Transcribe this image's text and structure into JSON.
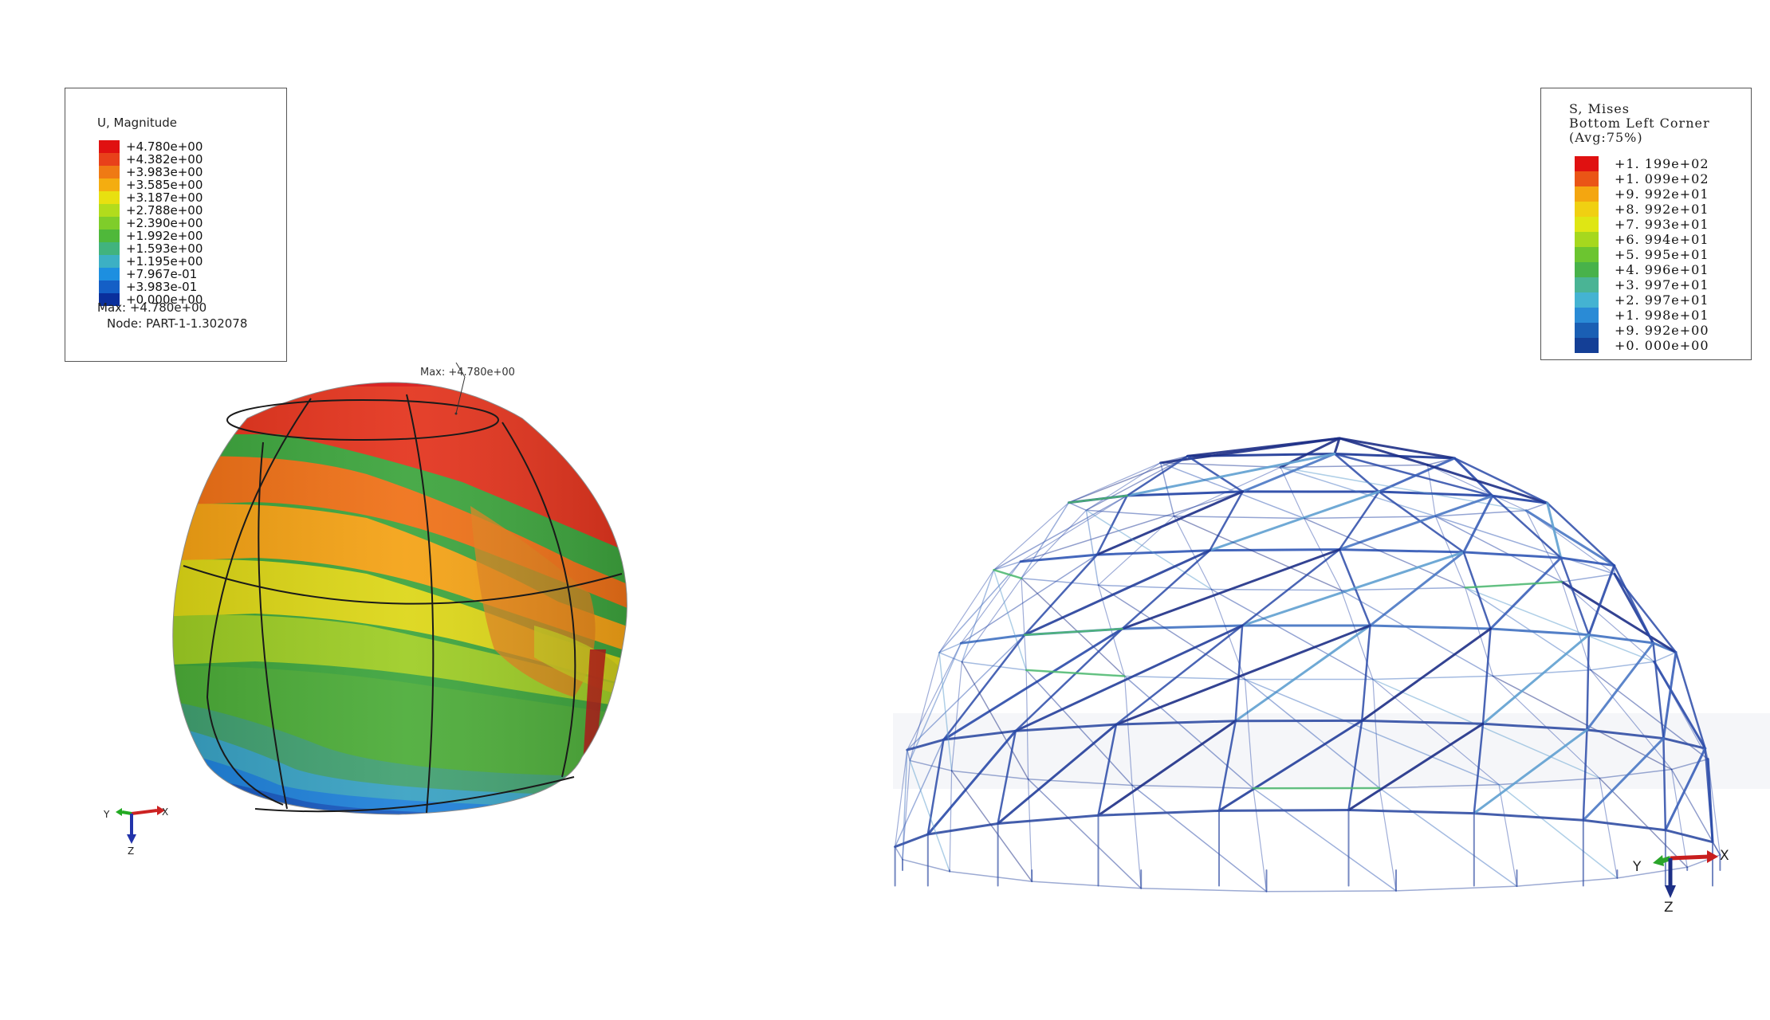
{
  "left_panel": {
    "legend": {
      "title": "U, Magnitude",
      "entries": [
        {
          "label": "+4.780e+00",
          "color": "#e01111"
        },
        {
          "label": "+4.382e+00",
          "color": "#e8411a"
        },
        {
          "label": "+3.983e+00",
          "color": "#ef7a14"
        },
        {
          "label": "+3.585e+00",
          "color": "#f4ad10"
        },
        {
          "label": "+3.187e+00",
          "color": "#e8e010"
        },
        {
          "label": "+2.788e+00",
          "color": "#b2dc1c"
        },
        {
          "label": "+2.390e+00",
          "color": "#7fcd2a"
        },
        {
          "label": "+1.992e+00",
          "color": "#4fb83a"
        },
        {
          "label": "+1.593e+00",
          "color": "#41b37e"
        },
        {
          "label": "+1.195e+00",
          "color": "#3cb0c4"
        },
        {
          "label": "+7.967e-01",
          "color": "#1d8fe0"
        },
        {
          "label": "+3.983e-01",
          "color": "#145fc6"
        },
        {
          "label": "+0.000e+00",
          "color": "#0a2f9c"
        }
      ],
      "max_label": "Max: +4.780e+00",
      "node_label": "Node: PART-1-1.302078"
    },
    "model_annotation": "Max: +4.780e+00",
    "triad": {
      "x": "X",
      "y": "Y",
      "z": "Z"
    }
  },
  "right_panel": {
    "legend": {
      "title_lines": [
        "S, Mises",
        "Bottom Left Corner",
        "(Avg:75%)"
      ],
      "entries": [
        {
          "label": "+1. 199e+02",
          "color": "#e01111"
        },
        {
          "label": "+1. 099e+02",
          "color": "#ea5516"
        },
        {
          "label": "+9. 992e+01",
          "color": "#f4a610"
        },
        {
          "label": "+8. 992e+01",
          "color": "#f0d012"
        },
        {
          "label": "+7. 993e+01",
          "color": "#dfe614"
        },
        {
          "label": "+6. 994e+01",
          "color": "#a6d81e"
        },
        {
          "label": "+5. 995e+01",
          "color": "#6cc530"
        },
        {
          "label": "+4. 996e+01",
          "color": "#48b24a"
        },
        {
          "label": "+3. 997e+01",
          "color": "#4ab495"
        },
        {
          "label": "+2. 997e+01",
          "color": "#44b3d2"
        },
        {
          "label": "+1. 998e+01",
          "color": "#2a8bd6"
        },
        {
          "label": "+9. 992e+00",
          "color": "#1a5fb4"
        },
        {
          "label": "+0. 000e+00",
          "color": "#143f96"
        }
      ]
    },
    "triad": {
      "x": "X",
      "y": "Y",
      "z": "Z"
    }
  }
}
